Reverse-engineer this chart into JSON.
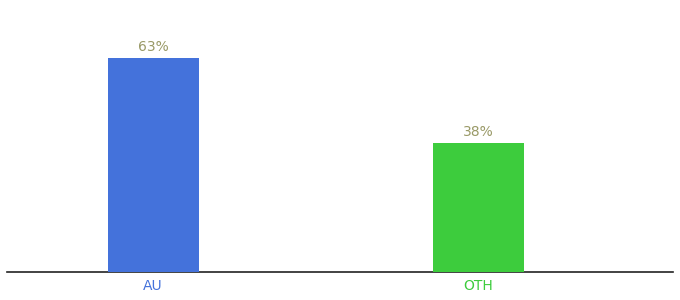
{
  "categories": [
    "AU",
    "OTH"
  ],
  "values": [
    63,
    38
  ],
  "bar_colors": [
    "#4472db",
    "#3dcc3d"
  ],
  "label_texts": [
    "63%",
    "38%"
  ],
  "label_color": "#999966",
  "label_fontsize": 10,
  "xlabel_fontsize": 10,
  "background_color": "#ffffff",
  "ylim": [
    0,
    78
  ],
  "bar_width": 0.28,
  "figsize": [
    6.8,
    3.0
  ],
  "dpi": 100,
  "tick_label_colors": [
    "#4472db",
    "#3dcc3d"
  ]
}
